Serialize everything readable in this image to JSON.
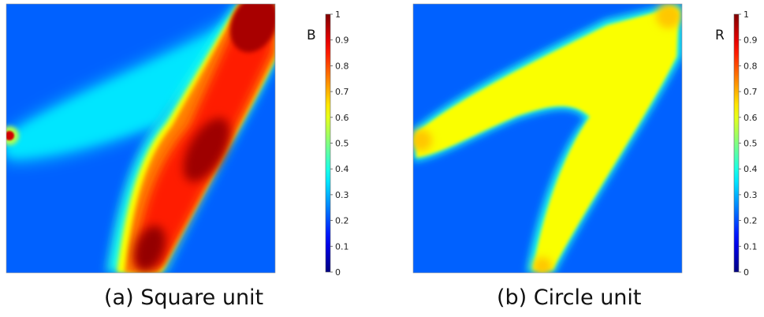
{
  "chart_data": [
    {
      "type": "heatmap",
      "title": "",
      "caption": "(a) Square unit",
      "colorbar": {
        "label": "B",
        "range": [
          0,
          1
        ],
        "ticks": [
          "0",
          "0.1",
          "0.2",
          "0.3",
          "0.4",
          "0.5",
          "0.6",
          "0.7",
          "0.8",
          "0.9",
          "1"
        ],
        "colormap": "jet"
      },
      "field": {
        "background": 0.22,
        "upper_arm_value": 0.33,
        "main_band_edge": 0.75,
        "main_band_core": 0.85,
        "hotspots": [
          0.98,
          0.97,
          0.96,
          0.92
        ]
      }
    },
    {
      "type": "heatmap",
      "title": "",
      "caption": "(b) Circle unit",
      "colorbar": {
        "label": "R",
        "range": [
          0,
          1
        ],
        "ticks": [
          "0",
          "0.1",
          "0.2",
          "0.3",
          "0.4",
          "0.5",
          "0.6",
          "0.7",
          "0.8",
          "0.9",
          "1"
        ],
        "colormap": "jet"
      },
      "field": {
        "background": 0.22,
        "shape_value": 0.62,
        "tip_value": 0.68
      }
    }
  ]
}
